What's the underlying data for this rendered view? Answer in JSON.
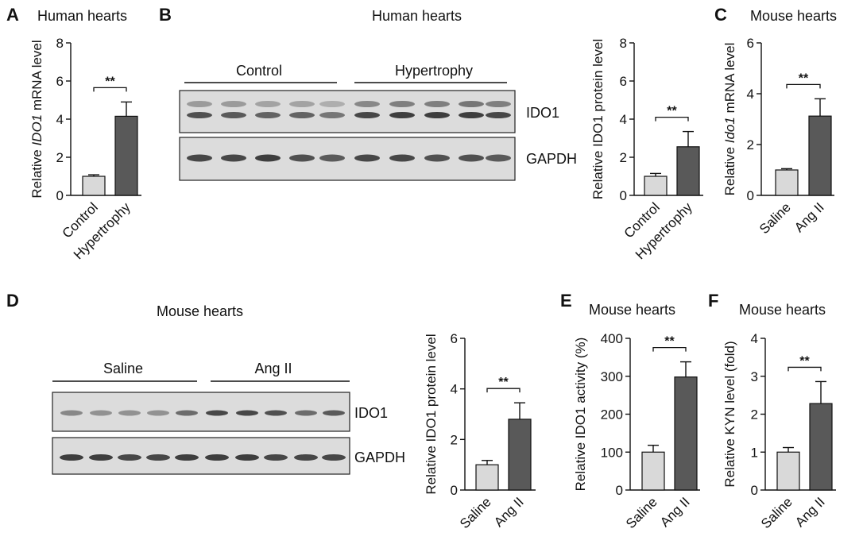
{
  "colors": {
    "control_bar": "#d9d9d9",
    "treated_bar": "#595959",
    "axis": "#111111",
    "blot_bg": "#dcdcdc"
  },
  "panels": {
    "A": {
      "label": "A",
      "title": "Human hearts"
    },
    "B": {
      "label": "B",
      "title": "Human hearts",
      "group_labels": [
        "Control",
        "Hypertrophy"
      ],
      "blot_labels": [
        "IDO1",
        "GAPDH"
      ]
    },
    "C": {
      "label": "C",
      "title": "Mouse hearts"
    },
    "D": {
      "label": "D",
      "title": "Mouse hearts",
      "group_labels": [
        "Saline",
        "Ang II"
      ],
      "blot_labels": [
        "IDO1",
        "GAPDH"
      ]
    },
    "E": {
      "label": "E",
      "title": "Mouse hearts"
    },
    "F": {
      "label": "F",
      "title": "Mouse hearts"
    }
  },
  "chart_data": [
    {
      "id": "A",
      "type": "bar",
      "title": "Human hearts",
      "categories": [
        "Control",
        "Hypertrophy"
      ],
      "values": [
        1.0,
        4.15
      ],
      "errors": [
        0.08,
        0.75
      ],
      "ylabel_parts": [
        "Relative ",
        "IDO1",
        " mRNA level"
      ],
      "ylim": [
        0,
        8
      ],
      "yticks": [
        "0",
        "2",
        "4",
        "6",
        "8"
      ],
      "significance": "**"
    },
    {
      "id": "B",
      "type": "bar",
      "title": "Human hearts",
      "categories": [
        "Control",
        "Hypertrophy"
      ],
      "values": [
        1.0,
        2.55
      ],
      "errors": [
        0.15,
        0.8
      ],
      "ylabel_parts": [
        "Relative IDO1 protein level"
      ],
      "ylim": [
        0,
        8
      ],
      "yticks": [
        "0",
        "2",
        "4",
        "6",
        "8"
      ],
      "significance": "**"
    },
    {
      "id": "C",
      "type": "bar",
      "title": "Mouse hearts",
      "categories": [
        "Saline",
        "Ang II"
      ],
      "values": [
        1.0,
        3.12
      ],
      "errors": [
        0.05,
        0.68
      ],
      "ylabel_parts": [
        "Relative ",
        "Ido1",
        " mRNA level"
      ],
      "ylim": [
        0,
        6
      ],
      "yticks": [
        "0",
        "2",
        "4",
        "6"
      ],
      "significance": "**"
    },
    {
      "id": "D",
      "type": "bar",
      "title": "Mouse hearts",
      "categories": [
        "Saline",
        "Ang II"
      ],
      "values": [
        1.0,
        2.8
      ],
      "errors": [
        0.17,
        0.65
      ],
      "ylabel_parts": [
        "Relative IDO1 protein level"
      ],
      "ylim": [
        0,
        6
      ],
      "yticks": [
        "0",
        "2",
        "4",
        "6"
      ],
      "significance": "**"
    },
    {
      "id": "E",
      "type": "bar",
      "title": "Mouse hearts",
      "categories": [
        "Saline",
        "Ang II"
      ],
      "values": [
        100,
        298
      ],
      "errors": [
        18,
        40
      ],
      "ylabel_parts": [
        "Relative IDO1 activity (%)"
      ],
      "ylim": [
        0,
        400
      ],
      "yticks": [
        "0",
        "100",
        "200",
        "300",
        "400"
      ],
      "significance": "**"
    },
    {
      "id": "F",
      "type": "bar",
      "title": "Mouse hearts",
      "categories": [
        "Saline",
        "Ang II"
      ],
      "values": [
        1.0,
        2.28
      ],
      "errors": [
        0.12,
        0.58
      ],
      "ylabel_parts": [
        "Relative KYN level (fold)"
      ],
      "ylim": [
        0,
        4
      ],
      "yticks": [
        "0",
        "1",
        "2",
        "3",
        "4"
      ],
      "significance": "**"
    }
  ]
}
